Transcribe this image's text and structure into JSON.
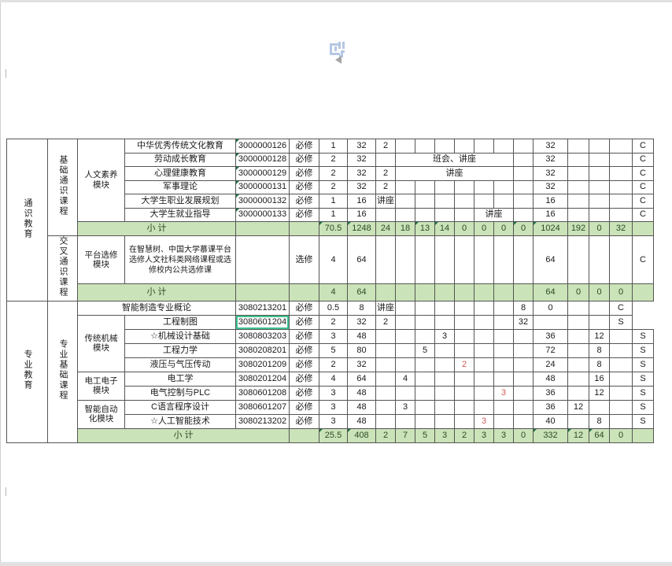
{
  "colors": {
    "subtotal_bg": "#cbe3b8",
    "subtotal_text": "#2b4a26",
    "highlight_red": "#cd5c5c",
    "selection_green": "#3ec28f",
    "corner_mark_green": "#217346",
    "watermark_blue": "#b5c7e3",
    "chrome_gray": "#e1e1e3"
  },
  "icons": {
    "watermark": "page-logo-stamp-icon",
    "arrow": "collapse-left-arrow-icon"
  },
  "table": {
    "columns": [
      "edu-section",
      "course-category",
      "module",
      "course-name",
      "course-code",
      "course-nature",
      "credits",
      "total-hours",
      "sem1",
      "sem2",
      "sem3",
      "sem4",
      "sem5",
      "sem6",
      "sem7",
      "sem8",
      "lecture-hours",
      "lab-hours",
      "practice-hours",
      "other-hours",
      "assessment"
    ],
    "rows": [
      {
        "name": "course-row",
        "cells": [
          {
            "t": "通识教育",
            "rs": 9,
            "c": "v",
            "n": "section-general-education"
          },
          {
            "t": "基础通识课程",
            "rs": 7,
            "c": "v",
            "n": "category-basic-general"
          },
          {
            "t": "人文素养模块",
            "rs": 6,
            "c": "mod",
            "n": "module-humanities"
          },
          {
            "t": "中华优秀传统文化教育"
          },
          {
            "t": "3000000126",
            "c": "tri"
          },
          {
            "t": "必修"
          },
          {
            "t": "1"
          },
          {
            "t": "32"
          },
          {
            "t": "2"
          },
          {},
          {},
          {},
          {},
          {},
          {},
          {},
          {
            "t": "32"
          },
          {},
          {},
          {},
          {
            "t": "C"
          }
        ]
      },
      {
        "name": "course-row",
        "cells": [
          {
            "t": "劳动成长教育"
          },
          {
            "t": "3000000128",
            "c": "tri"
          },
          {
            "t": "必修"
          },
          {
            "t": "2"
          },
          {
            "t": "32"
          },
          {},
          {
            "t": "班会、讲座",
            "cs": 6
          },
          {},
          {
            "t": "32"
          },
          {},
          {},
          {},
          {
            "t": "C"
          }
        ]
      },
      {
        "name": "course-row",
        "cells": [
          {
            "t": "心理健康教育"
          },
          {
            "t": "3000000129",
            "c": "tri"
          },
          {
            "t": "必修"
          },
          {
            "t": "2"
          },
          {
            "t": "32"
          },
          {
            "t": "2"
          },
          {
            "t": "讲座",
            "cs": 6
          },
          {},
          {
            "t": "32"
          },
          {},
          {},
          {},
          {
            "t": "C"
          }
        ]
      },
      {
        "name": "course-row",
        "cells": [
          {
            "t": "军事理论"
          },
          {
            "t": "3000000131",
            "c": "tri"
          },
          {
            "t": "必修"
          },
          {
            "t": "2"
          },
          {
            "t": "32"
          },
          {
            "t": "2"
          },
          {},
          {},
          {},
          {},
          {},
          {},
          {},
          {
            "t": "32"
          },
          {},
          {},
          {},
          {
            "t": "C"
          }
        ]
      },
      {
        "name": "course-row",
        "cells": [
          {
            "t": "大学生职业发展规划"
          },
          {
            "t": "3000000132",
            "c": "tri"
          },
          {
            "t": "必修"
          },
          {
            "t": "1"
          },
          {
            "t": "16"
          },
          {
            "t": "讲座"
          },
          {},
          {},
          {},
          {},
          {},
          {},
          {},
          {
            "t": "16"
          },
          {},
          {},
          {},
          {
            "t": "C"
          }
        ]
      },
      {
        "name": "course-row",
        "cells": [
          {
            "t": "大学生就业指导"
          },
          {
            "t": "3000000133",
            "c": "tri"
          },
          {
            "t": "必修"
          },
          {
            "t": "1"
          },
          {
            "t": "16"
          },
          {},
          {},
          {},
          {},
          {},
          {
            "t": "讲座",
            "cs": 2
          },
          {},
          {
            "t": "16"
          },
          {},
          {},
          {},
          {
            "t": "C"
          }
        ]
      },
      {
        "name": "subtotal-row",
        "cls": "subtotal",
        "cells": [
          {
            "t": "小  计",
            "cs": 2,
            "n": "subtotal-label"
          },
          {},
          {},
          {
            "t": "70.5",
            "c": "tri"
          },
          {
            "t": "1248",
            "c": "tri"
          },
          {
            "t": "24"
          },
          {
            "t": "18"
          },
          {
            "t": "13",
            "c": "tri"
          },
          {
            "t": "14",
            "c": "tri"
          },
          {
            "t": "0"
          },
          {
            "t": "0"
          },
          {
            "t": "0"
          },
          {
            "t": "0",
            "c": "tri"
          },
          {
            "t": "1024",
            "c": "tri"
          },
          {
            "t": "192"
          },
          {
            "t": "0"
          },
          {
            "t": "32"
          },
          {}
        ]
      },
      {
        "name": "course-row",
        "cells": [
          {
            "t": "交叉通识课程",
            "rs": 2,
            "c": "v",
            "n": "category-cross-general"
          },
          {
            "t": "平台选修模块",
            "c": "mod",
            "n": "module-platform-elective"
          },
          {
            "t": "在智慧树、中国大学慕课平台选修人文社科类网络课程或选修校内公共选修课",
            "c": "desc"
          },
          {},
          {
            "t": "选修"
          },
          {
            "t": "4"
          },
          {
            "t": "64"
          },
          {},
          {},
          {},
          {},
          {},
          {},
          {},
          {},
          {
            "t": "64"
          },
          {},
          {},
          {},
          {
            "t": "C"
          }
        ]
      },
      {
        "name": "subtotal-row",
        "cls": "subtotal",
        "cells": [
          {
            "t": "小  计",
            "cs": 2,
            "n": "subtotal-label"
          },
          {},
          {},
          {
            "t": "4"
          },
          {
            "t": "64"
          },
          {},
          {},
          {},
          {},
          {},
          {},
          {},
          {},
          {
            "t": "64"
          },
          {
            "t": "0"
          },
          {
            "t": "0"
          },
          {
            "t": "0"
          },
          {}
        ]
      },
      {
        "name": "course-row",
        "cells": [
          {
            "t": "专业教育",
            "rs": 10,
            "c": "v",
            "n": "section-professional-education"
          },
          {
            "t": "专业基础课程",
            "rs": 10,
            "c": "v",
            "n": "category-professional-basic"
          },
          {
            "t": "智能制造专业概论",
            "cs": 2
          },
          {
            "t": "3080213201"
          },
          {
            "t": "必修"
          },
          {
            "t": "0.5"
          },
          {
            "t": "8"
          },
          {
            "t": "讲座"
          },
          {},
          {},
          {},
          {},
          {},
          {},
          {
            "t": "8"
          },
          {
            "t": "0"
          },
          {},
          {},
          {
            "t": "C"
          }
        ]
      },
      {
        "name": "course-row",
        "cells": [
          {
            "t": "传统机械模块",
            "rs": 4,
            "c": "mod",
            "n": "module-traditional-machinery"
          },
          {
            "t": "工程制图"
          },
          {
            "t": "3080601204",
            "c": "sel",
            "n": "selected-cell"
          },
          {
            "t": "必修"
          },
          {
            "t": "2"
          },
          {
            "t": "32"
          },
          {
            "t": "2"
          },
          {},
          {},
          {},
          {},
          {},
          {},
          {
            "t": "32"
          },
          {},
          {},
          {},
          {
            "t": "S"
          }
        ]
      },
      {
        "name": "course-row",
        "cells": [
          {
            "t": "☆机械设计基础"
          },
          {
            "t": "3080803203"
          },
          {
            "t": "必修"
          },
          {
            "t": "3"
          },
          {
            "t": "48"
          },
          {},
          {},
          {},
          {
            "t": "3"
          },
          {},
          {},
          {},
          {},
          {
            "t": "36"
          },
          {},
          {
            "t": "12"
          },
          {},
          {
            "t": "S"
          }
        ]
      },
      {
        "name": "course-row",
        "cells": [
          {
            "t": "工程力学"
          },
          {
            "t": "3080208201"
          },
          {
            "t": "必修"
          },
          {
            "t": "5"
          },
          {
            "t": "80"
          },
          {},
          {},
          {
            "t": "5"
          },
          {},
          {},
          {},
          {},
          {},
          {
            "t": "72"
          },
          {},
          {
            "t": "8"
          },
          {},
          {
            "t": "S"
          }
        ]
      },
      {
        "name": "course-row",
        "cells": [
          {
            "t": "液压与气压传动"
          },
          {
            "t": "3080201209"
          },
          {
            "t": "必修"
          },
          {
            "t": "2"
          },
          {
            "t": "32"
          },
          {},
          {},
          {},
          {},
          {
            "t": "2",
            "c": "red"
          },
          {},
          {},
          {},
          {
            "t": "24"
          },
          {},
          {
            "t": "8"
          },
          {},
          {
            "t": "S"
          }
        ]
      },
      {
        "name": "course-row",
        "cells": [
          {
            "t": "电工电子模块",
            "rs": 2,
            "c": "mod",
            "n": "module-electrical-electronic"
          },
          {
            "t": "电工学"
          },
          {
            "t": "3080201204"
          },
          {
            "t": "必修"
          },
          {
            "t": "4"
          },
          {
            "t": "64"
          },
          {},
          {
            "t": "4"
          },
          {},
          {},
          {},
          {},
          {},
          {},
          {
            "t": "48"
          },
          {},
          {
            "t": "16"
          },
          {},
          {
            "t": "S"
          }
        ]
      },
      {
        "name": "course-row",
        "cells": [
          {
            "t": "电气控制与PLC"
          },
          {
            "t": "3080601208"
          },
          {
            "t": "必修"
          },
          {
            "t": "3"
          },
          {
            "t": "48"
          },
          {},
          {},
          {},
          {},
          {},
          {},
          {
            "t": "3",
            "c": "red"
          },
          {},
          {
            "t": "36"
          },
          {},
          {
            "t": "12"
          },
          {},
          {
            "t": "S"
          }
        ]
      },
      {
        "name": "course-row",
        "cells": [
          {
            "t": "智能自动化模块",
            "rs": 2,
            "c": "mod",
            "n": "module-intelligent-automation"
          },
          {
            "t": "C语言程序设计"
          },
          {
            "t": "3080601207"
          },
          {
            "t": "必修"
          },
          {
            "t": "3"
          },
          {
            "t": "48"
          },
          {},
          {
            "t": "3"
          },
          {},
          {},
          {},
          {},
          {},
          {},
          {
            "t": "36"
          },
          {
            "t": "12"
          },
          {},
          {},
          {
            "t": "S"
          }
        ]
      },
      {
        "name": "course-row",
        "cells": [
          {
            "t": "☆人工智能技术"
          },
          {
            "t": "3080213202"
          },
          {
            "t": "必修"
          },
          {
            "t": "3"
          },
          {
            "t": "48"
          },
          {},
          {},
          {},
          {},
          {},
          {
            "t": "3",
            "c": "red"
          },
          {},
          {},
          {
            "t": "40"
          },
          {},
          {
            "t": "8"
          },
          {},
          {
            "t": "S"
          }
        ]
      },
      {
        "name": "subtotal-row",
        "cls": "subtotal",
        "cells": [
          {
            "t": "小  计",
            "cs": 3,
            "n": "subtotal-label"
          },
          {},
          {
            "t": "25.5",
            "c": "tri"
          },
          {
            "t": "408",
            "c": "tri"
          },
          {
            "t": "2"
          },
          {
            "t": "7"
          },
          {
            "t": "5"
          },
          {
            "t": "3"
          },
          {
            "t": "2"
          },
          {
            "t": "3"
          },
          {
            "t": "3"
          },
          {
            "t": "0"
          },
          {
            "t": "332",
            "c": "tri"
          },
          {
            "t": "12",
            "c": "tri"
          },
          {
            "t": "64",
            "c": "tri"
          },
          {
            "t": "0"
          },
          {}
        ]
      }
    ]
  }
}
